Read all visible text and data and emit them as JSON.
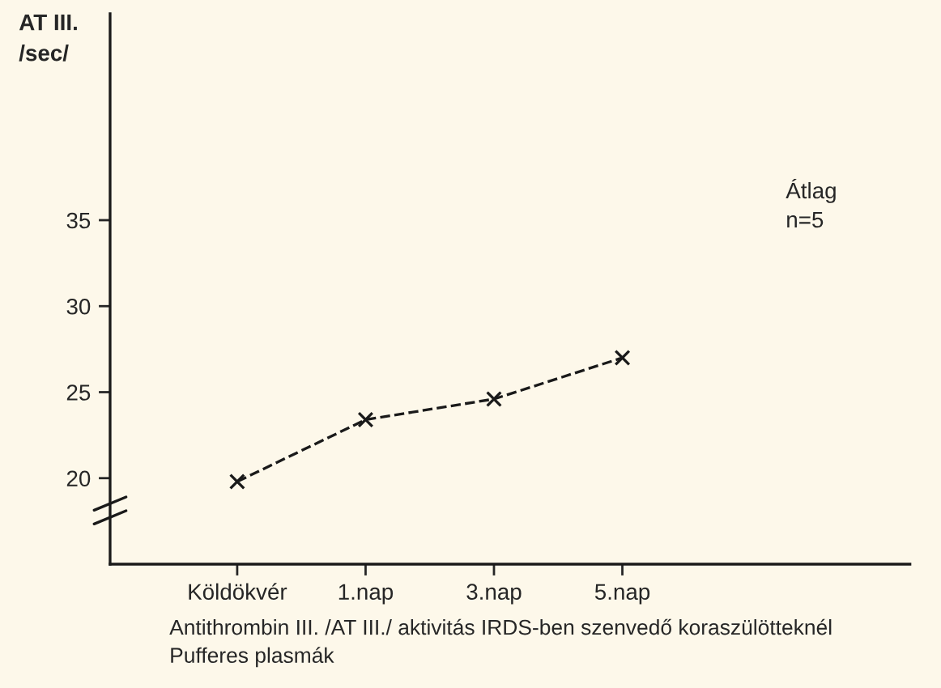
{
  "chart_data": {
    "type": "line",
    "ylabel": "AT III.\n/sec/",
    "categories": [
      "Köldökvér",
      "1.nap",
      "3.nap",
      "5.nap"
    ],
    "series": [
      {
        "color": "#1a1a1a",
        "values": [
          19.8,
          23.4,
          24.6,
          27.0
        ]
      }
    ],
    "ylim": [
      15,
      47
    ],
    "yticks": [
      20,
      25,
      30,
      35
    ],
    "marker": "cross",
    "line_style": "dashed",
    "grid": false,
    "legend": false,
    "annotations": [
      "Átlag\nn=5",
      "Antithrombin III. /AT III./ aktivitás IRDS-ben szenvedő koraszülötteknél\nPufferes plasmák"
    ]
  }
}
